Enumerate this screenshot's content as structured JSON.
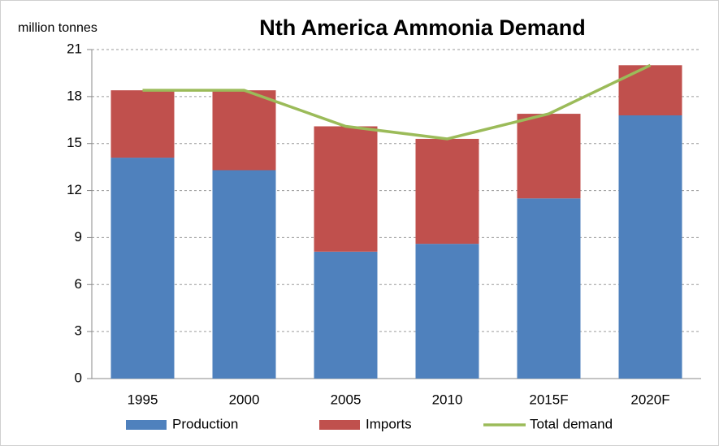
{
  "chart_data": {
    "type": "bar",
    "title": "Nth America Ammonia Demand",
    "ylabel": "million tonnes",
    "categories": [
      "1995",
      "2000",
      "2005",
      "2010",
      "2015F",
      "2020F"
    ],
    "series": [
      {
        "name": "Production",
        "color": "#4f81bd",
        "type": "bar",
        "values": [
          14.1,
          13.3,
          8.1,
          8.6,
          11.5,
          16.8
        ]
      },
      {
        "name": "Imports",
        "color": "#c0504d",
        "type": "bar",
        "values": [
          4.3,
          5.1,
          8.0,
          6.7,
          5.4,
          3.2
        ]
      },
      {
        "name": "Total demand",
        "color": "#9bbb59",
        "type": "line",
        "values": [
          18.4,
          18.4,
          16.1,
          15.3,
          16.9,
          20.0
        ]
      }
    ],
    "stacked": true,
    "ylim": [
      0,
      21
    ],
    "yticks": [
      0,
      3,
      6,
      9,
      12,
      15,
      18,
      21
    ],
    "grid": true,
    "legend": "bottom"
  }
}
